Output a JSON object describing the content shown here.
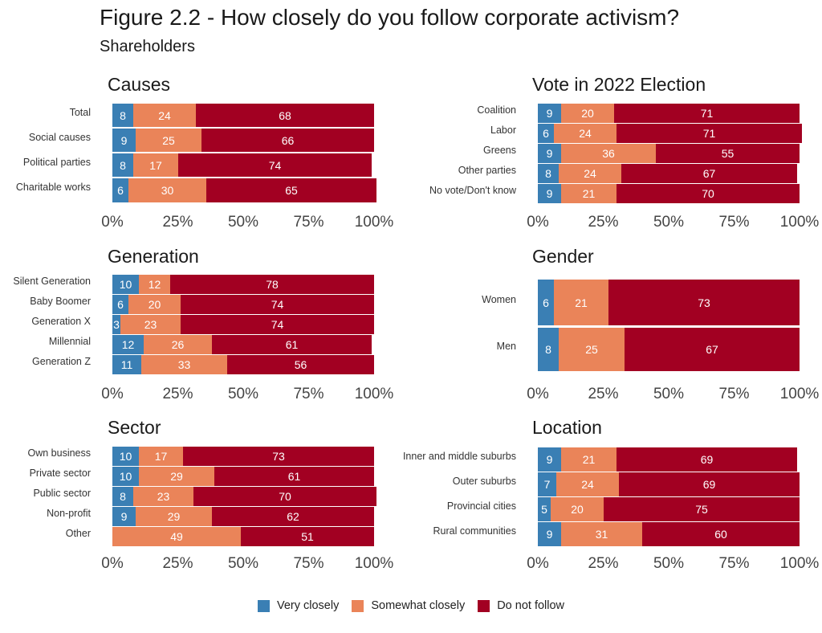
{
  "title": "Figure 2.2 - How closely do you follow corporate activism?",
  "subtitle": "Shareholders",
  "colors": {
    "very_closely": "#3a7fb4",
    "somewhat_closely": "#ea8459",
    "do_not_follow": "#a20022"
  },
  "legend": [
    {
      "key": "very_closely",
      "label": "Very closely"
    },
    {
      "key": "somewhat_closely",
      "label": "Somewhat closely"
    },
    {
      "key": "do_not_follow",
      "label": "Do not follow"
    }
  ],
  "chart_data": [
    {
      "type": "bar",
      "stacked": true,
      "orientation": "horizontal",
      "title": "Causes",
      "categories": [
        "Total",
        "Social causes",
        "Political parties",
        "Charitable works"
      ],
      "series": [
        {
          "name": "Very closely",
          "values": [
            8,
            9,
            8,
            6
          ]
        },
        {
          "name": "Somewhat closely",
          "values": [
            24,
            25,
            17,
            30
          ]
        },
        {
          "name": "Do not follow",
          "values": [
            68,
            66,
            74,
            65
          ]
        }
      ],
      "xticks": [
        "0%",
        "25%",
        "50%",
        "75%",
        "100%"
      ],
      "xlim": [
        0,
        100
      ]
    },
    {
      "type": "bar",
      "stacked": true,
      "orientation": "horizontal",
      "title": "Vote in 2022 Election",
      "categories": [
        "Coalition",
        "Labor",
        "Greens",
        "Other parties",
        "No vote/Don't know"
      ],
      "series": [
        {
          "name": "Very closely",
          "values": [
            9,
            6,
            9,
            8,
            9
          ]
        },
        {
          "name": "Somewhat closely",
          "values": [
            20,
            24,
            36,
            24,
            21
          ]
        },
        {
          "name": "Do not follow",
          "values": [
            71,
            71,
            55,
            67,
            70
          ]
        }
      ],
      "xticks": [
        "0%",
        "25%",
        "50%",
        "75%",
        "100%"
      ],
      "xlim": [
        0,
        100
      ]
    },
    {
      "type": "bar",
      "stacked": true,
      "orientation": "horizontal",
      "title": "Generation",
      "categories": [
        "Silent Generation",
        "Baby Boomer",
        "Generation X",
        "Millennial",
        "Generation Z"
      ],
      "series": [
        {
          "name": "Very closely",
          "values": [
            10,
            6,
            3,
            12,
            11
          ]
        },
        {
          "name": "Somewhat closely",
          "values": [
            12,
            20,
            23,
            26,
            33
          ]
        },
        {
          "name": "Do not follow",
          "values": [
            78,
            74,
            74,
            61,
            56
          ]
        }
      ],
      "xticks": [
        "0%",
        "25%",
        "50%",
        "75%",
        "100%"
      ],
      "xlim": [
        0,
        100
      ]
    },
    {
      "type": "bar",
      "stacked": true,
      "orientation": "horizontal",
      "title": "Gender",
      "categories": [
        "Women",
        "Men"
      ],
      "series": [
        {
          "name": "Very closely",
          "values": [
            6,
            8
          ]
        },
        {
          "name": "Somewhat closely",
          "values": [
            21,
            25
          ]
        },
        {
          "name": "Do not follow",
          "values": [
            73,
            67
          ]
        }
      ],
      "xticks": [
        "0%",
        "25%",
        "50%",
        "75%",
        "100%"
      ],
      "xlim": [
        0,
        100
      ]
    },
    {
      "type": "bar",
      "stacked": true,
      "orientation": "horizontal",
      "title": "Sector",
      "categories": [
        "Own business",
        "Private sector",
        "Public sector",
        "Non-profit",
        "Other"
      ],
      "series": [
        {
          "name": "Very closely",
          "values": [
            10,
            10,
            8,
            9,
            0
          ]
        },
        {
          "name": "Somewhat closely",
          "values": [
            17,
            29,
            23,
            29,
            49
          ]
        },
        {
          "name": "Do not follow",
          "values": [
            73,
            61,
            70,
            62,
            51
          ]
        }
      ],
      "xticks": [
        "0%",
        "25%",
        "50%",
        "75%",
        "100%"
      ],
      "xlim": [
        0,
        100
      ]
    },
    {
      "type": "bar",
      "stacked": true,
      "orientation": "horizontal",
      "title": "Location",
      "categories": [
        "Inner and middle suburbs",
        "Outer suburbs",
        "Provincial cities",
        "Rural communities"
      ],
      "series": [
        {
          "name": "Very closely",
          "values": [
            9,
            7,
            5,
            9
          ]
        },
        {
          "name": "Somewhat closely",
          "values": [
            21,
            24,
            20,
            31
          ]
        },
        {
          "name": "Do not follow",
          "values": [
            69,
            69,
            75,
            60
          ]
        }
      ],
      "xticks": [
        "0%",
        "25%",
        "50%",
        "75%",
        "100%"
      ],
      "xlim": [
        0,
        100
      ]
    }
  ]
}
